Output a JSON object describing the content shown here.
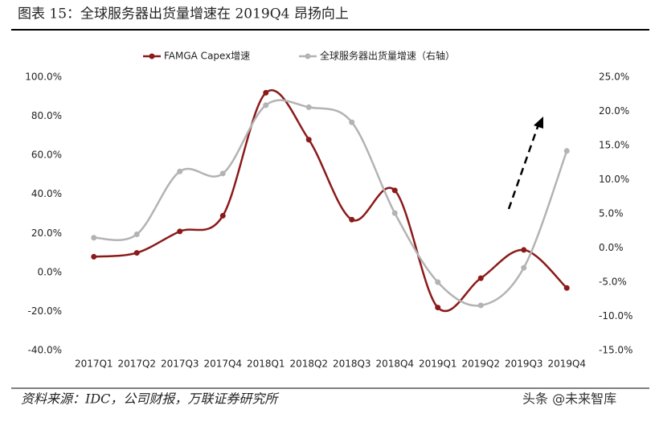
{
  "chart_data": {
    "type": "line",
    "title": "图表 15：全球服务器出货量增速在 2019Q4 昂扬向上",
    "source": "资料来源：IDC，公司财报，万联证券研究所",
    "watermark": "头条 @未来智库",
    "categories": [
      "2017Q1",
      "2017Q2",
      "2017Q3",
      "2017Q4",
      "2018Q1",
      "2018Q2",
      "2018Q3",
      "2018Q4",
      "2019Q1",
      "2019Q2",
      "2019Q3",
      "2019Q4"
    ],
    "series": [
      {
        "name": "FAMGA Capex增速",
        "color": "#8b1a1a",
        "values": [
          8,
          10,
          21,
          29,
          92,
          68,
          27,
          42,
          -18,
          -3,
          11.5,
          -8
        ]
      },
      {
        "name": "全球服务器出货量增速（右轴）",
        "color": "#b3b3b3",
        "axis": "y2",
        "values": [
          1.5,
          2,
          11.2,
          10.9,
          20.9,
          20.6,
          18.4,
          5.1,
          -5,
          -8.4,
          -2.9,
          14.2
        ]
      }
    ],
    "ylim": [
      -40,
      100
    ],
    "yticks": [
      {
        "value": -40,
        "label": "-40.0%"
      },
      {
        "value": -20,
        "label": "-20.0%"
      },
      {
        "value": 0,
        "label": "0.0%"
      },
      {
        "value": 20,
        "label": "20.0%"
      },
      {
        "value": 40,
        "label": "40.0%"
      },
      {
        "value": 60,
        "label": "60.0%"
      },
      {
        "value": 80,
        "label": "80.0%"
      },
      {
        "value": 100,
        "label": "100.0%"
      }
    ],
    "y2lim": [
      -15,
      25
    ],
    "y2ticks": [
      {
        "value": -15,
        "label": "-15.0%"
      },
      {
        "value": -10,
        "label": "-10.0%"
      },
      {
        "value": -5,
        "label": "-5.0%"
      },
      {
        "value": 0,
        "label": "0.0%"
      },
      {
        "value": 5,
        "label": "5.0%"
      },
      {
        "value": 10,
        "label": "10.0%"
      },
      {
        "value": 15,
        "label": "15.0%"
      },
      {
        "value": 20,
        "label": "20.0%"
      },
      {
        "value": 25,
        "label": "25.0%"
      }
    ]
  }
}
